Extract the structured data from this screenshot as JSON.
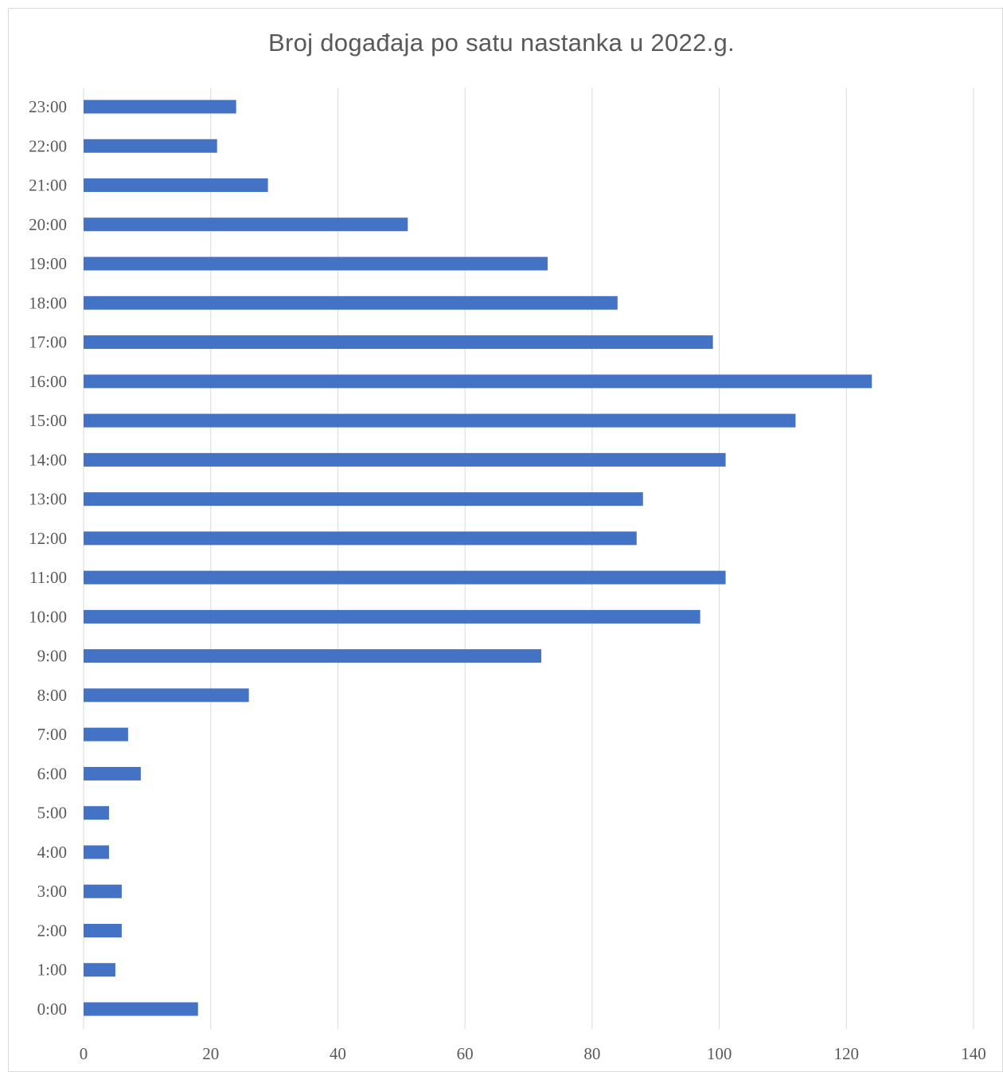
{
  "chart_data": {
    "type": "bar",
    "orientation": "horizontal",
    "title": "Broj događaja po satu nastanka u 2022.g.",
    "xlabel": "",
    "ylabel": "",
    "categories": [
      "0:00",
      "1:00",
      "2:00",
      "3:00",
      "4:00",
      "5:00",
      "6:00",
      "7:00",
      "8:00",
      "9:00",
      "10:00",
      "11:00",
      "12:00",
      "13:00",
      "14:00",
      "15:00",
      "16:00",
      "17:00",
      "18:00",
      "19:00",
      "20:00",
      "21:00",
      "22:00",
      "23:00"
    ],
    "values": [
      18,
      5,
      6,
      6,
      4,
      4,
      9,
      7,
      26,
      72,
      97,
      101,
      87,
      88,
      101,
      112,
      124,
      99,
      84,
      73,
      51,
      29,
      21,
      24
    ],
    "xlim": [
      0,
      140
    ],
    "xticks": [
      "0",
      "20",
      "40",
      "60",
      "80",
      "100",
      "120",
      "140"
    ],
    "grid": true,
    "legend": "none",
    "bar_color": "#4472c4",
    "grid_color": "#d9d9d9",
    "text_color": "#595959"
  }
}
